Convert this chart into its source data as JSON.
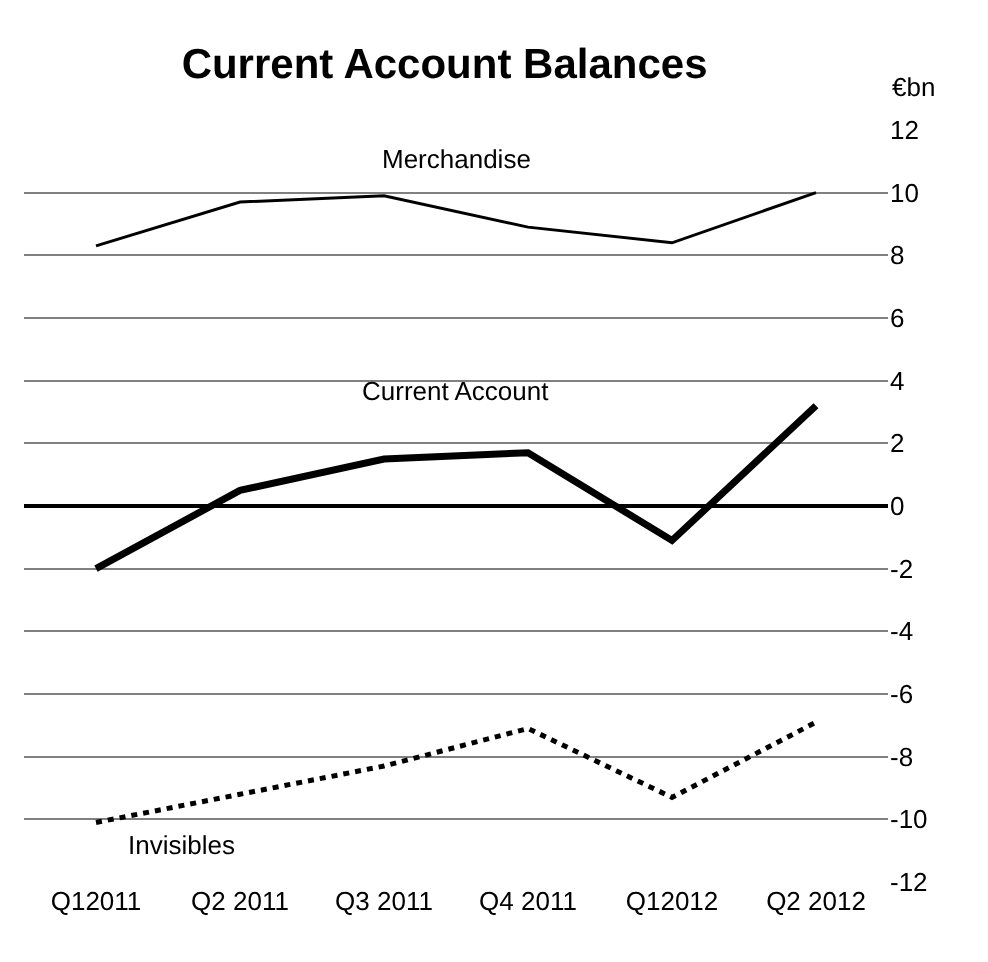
{
  "chart_data": {
    "type": "line",
    "title": "Current Account Balances",
    "ylabel": "€bn",
    "categories": [
      "Q12011",
      "Q2 2011",
      "Q3 2011",
      "Q4 2011",
      "Q12012",
      "Q2 2012"
    ],
    "series": [
      {
        "name": "Merchandise",
        "color": "#000000",
        "line_style": "solid",
        "values": [
          8.3,
          9.7,
          9.9,
          8.9,
          8.4,
          10.0
        ]
      },
      {
        "name": "Current Account",
        "color": "#000000",
        "line_style": "solid",
        "values": [
          -2.0,
          0.5,
          1.5,
          1.7,
          -1.1,
          3.2
        ]
      },
      {
        "name": "Invisibles",
        "color": "#000000",
        "line_style": "dotted",
        "values": [
          -10.1,
          -9.2,
          -8.3,
          -7.1,
          -9.3,
          -6.9
        ]
      }
    ],
    "ylim": [
      -12,
      12
    ],
    "yticks": [
      -12,
      -10,
      -8,
      -6,
      -4,
      -2,
      0,
      2,
      4,
      6,
      8,
      10,
      12
    ],
    "grid": "y",
    "legend": false,
    "marker": "none"
  }
}
